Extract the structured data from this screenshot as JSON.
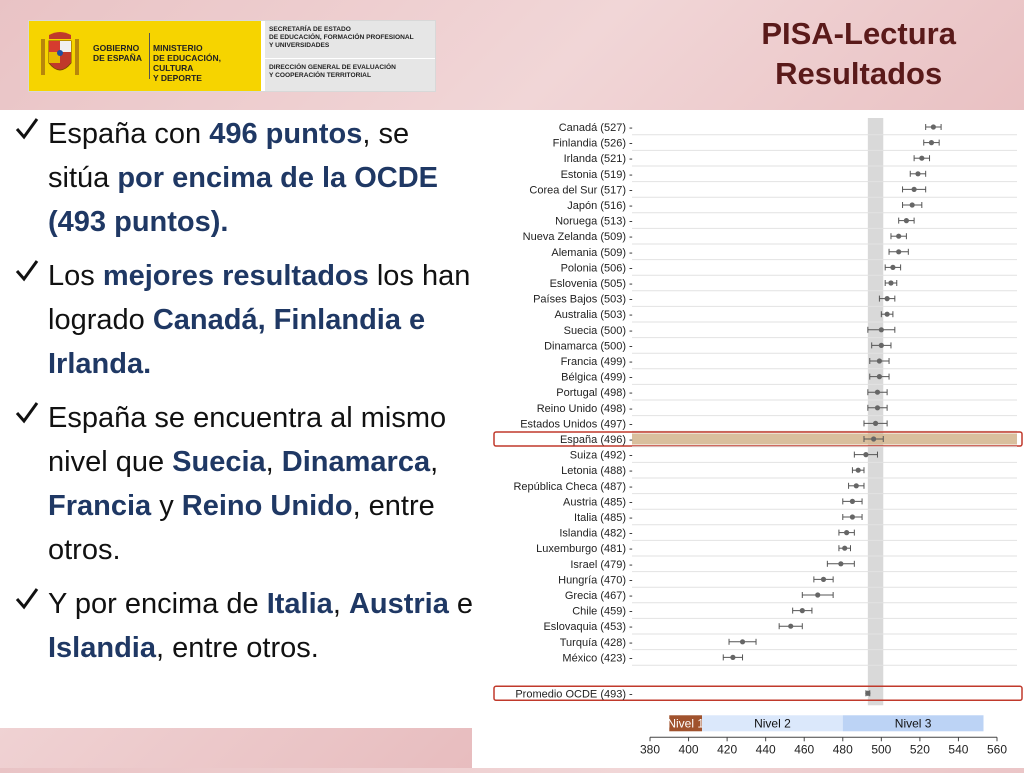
{
  "logo": {
    "gobierno": [
      "GOBIERNO",
      "DE ESPAÑA"
    ],
    "ministerio": [
      "MINISTERIO",
      "DE EDUCACIÓN, CULTURA",
      "Y DEPORTE"
    ],
    "secretaria": [
      "SECRETARÍA DE ESTADO",
      "DE EDUCACIÓN, FORMACIÓN PROFESIONAL",
      "Y UNIVERSIDADES"
    ],
    "direccion": [
      "DIRECCIÓN GENERAL DE EVALUACIÓN",
      "Y COOPERACIÓN TERRITORIAL"
    ]
  },
  "title": {
    "line1": "PISA-Lectura",
    "line2": "Resultados"
  },
  "bullets": [
    [
      {
        "t": "España con "
      },
      {
        "t": "496 puntos",
        "h": true
      },
      {
        "t": ", se sitúa "
      },
      {
        "t": "por encima de la OCDE (493 puntos).",
        "h": true
      }
    ],
    [
      {
        "t": "Los "
      },
      {
        "t": "mejores resultados",
        "h": true
      },
      {
        "t": " los han logrado "
      },
      {
        "t": "Canadá, Finlandia e Irlanda.",
        "h": true
      }
    ],
    [
      {
        "t": "España se encuentra al mismo nivel que "
      },
      {
        "t": "Suecia",
        "h": true
      },
      {
        "t": ", "
      },
      {
        "t": "Dinamarca",
        "h": true
      },
      {
        "t": ", "
      },
      {
        "t": "Francia",
        "h": true
      },
      {
        "t": " y "
      },
      {
        "t": "Reino Unido",
        "h": true
      },
      {
        "t": ", entre otros."
      }
    ],
    [
      {
        "t": "Y por encima de "
      },
      {
        "t": "Italia",
        "h": true
      },
      {
        "t": ", "
      },
      {
        "t": "Austria",
        "h": true
      },
      {
        "t": " e "
      },
      {
        "t": "Islandia",
        "h": true
      },
      {
        "t": ", entre otros."
      }
    ]
  ],
  "colors": {
    "highlight_text": "#1f3864",
    "title": "#5a1a1a",
    "highlight_row": "#d2b48c",
    "highlight_border": "#c0392b",
    "oecd_band": "#d9d9d9",
    "nivel1": "#a0522d",
    "nivel2": "#dbe8fb",
    "nivel3": "#bcd3f5"
  },
  "chart_data": {
    "type": "scatter",
    "xlim": [
      380,
      560
    ],
    "xticks": [
      380,
      400,
      420,
      440,
      460,
      480,
      500,
      520,
      540,
      560
    ],
    "oecd_band": [
      493,
      501
    ],
    "levels": [
      {
        "name": "Nivel 1",
        "from": 390,
        "to": 407
      },
      {
        "name": "Nivel 2",
        "from": 407,
        "to": 480
      },
      {
        "name": "Nivel 3",
        "from": 480,
        "to": 553
      }
    ],
    "countries": [
      {
        "label": "Canadá (527)",
        "value": 527,
        "err": 4
      },
      {
        "label": "Finlandia (526)",
        "value": 526,
        "err": 4
      },
      {
        "label": "Irlanda (521)",
        "value": 521,
        "err": 4
      },
      {
        "label": "Estonia (519)",
        "value": 519,
        "err": 4
      },
      {
        "label": "Corea del Sur (517)",
        "value": 517,
        "err": 6
      },
      {
        "label": "Japón (516)",
        "value": 516,
        "err": 5
      },
      {
        "label": "Noruega (513)",
        "value": 513,
        "err": 4
      },
      {
        "label": "Nueva Zelanda (509)",
        "value": 509,
        "err": 4
      },
      {
        "label": "Alemania (509)",
        "value": 509,
        "err": 5
      },
      {
        "label": "Polonia (506)",
        "value": 506,
        "err": 4
      },
      {
        "label": "Eslovenia (505)",
        "value": 505,
        "err": 3
      },
      {
        "label": "Países Bajos (503)",
        "value": 503,
        "err": 4
      },
      {
        "label": "Australia (503)",
        "value": 503,
        "err": 3
      },
      {
        "label": "Suecia (500)",
        "value": 500,
        "err": 7
      },
      {
        "label": "Dinamarca (500)",
        "value": 500,
        "err": 5
      },
      {
        "label": "Francia (499)",
        "value": 499,
        "err": 5
      },
      {
        "label": "Bélgica (499)",
        "value": 499,
        "err": 5
      },
      {
        "label": "Portugal (498)",
        "value": 498,
        "err": 5
      },
      {
        "label": "Reino Unido (498)",
        "value": 498,
        "err": 5
      },
      {
        "label": "Estados Unidos (497)",
        "value": 497,
        "err": 6
      },
      {
        "label": "España (496)",
        "value": 496,
        "err": 5,
        "highlight": true
      },
      {
        "label": "Suiza (492)",
        "value": 492,
        "err": 6
      },
      {
        "label": "Letonia (488)",
        "value": 488,
        "err": 3
      },
      {
        "label": "República Checa (487)",
        "value": 487,
        "err": 4
      },
      {
        "label": "Austria (485)",
        "value": 485,
        "err": 5
      },
      {
        "label": "Italia (485)",
        "value": 485,
        "err": 5
      },
      {
        "label": "Islandia (482)",
        "value": 482,
        "err": 4
      },
      {
        "label": "Luxemburgo (481)",
        "value": 481,
        "err": 3
      },
      {
        "label": "Israel (479)",
        "value": 479,
        "err": 7
      },
      {
        "label": "Hungría (470)",
        "value": 470,
        "err": 5
      },
      {
        "label": "Grecia (467)",
        "value": 467,
        "err": 8
      },
      {
        "label": "Chile (459)",
        "value": 459,
        "err": 5
      },
      {
        "label": "Eslovaquia (453)",
        "value": 453,
        "err": 6
      },
      {
        "label": "Turquía (428)",
        "value": 428,
        "err": 7
      },
      {
        "label": "México (423)",
        "value": 423,
        "err": 5
      }
    ],
    "average": {
      "label": "Promedio OCDE (493)",
      "value": 493,
      "err": 1,
      "highlight": true
    }
  }
}
